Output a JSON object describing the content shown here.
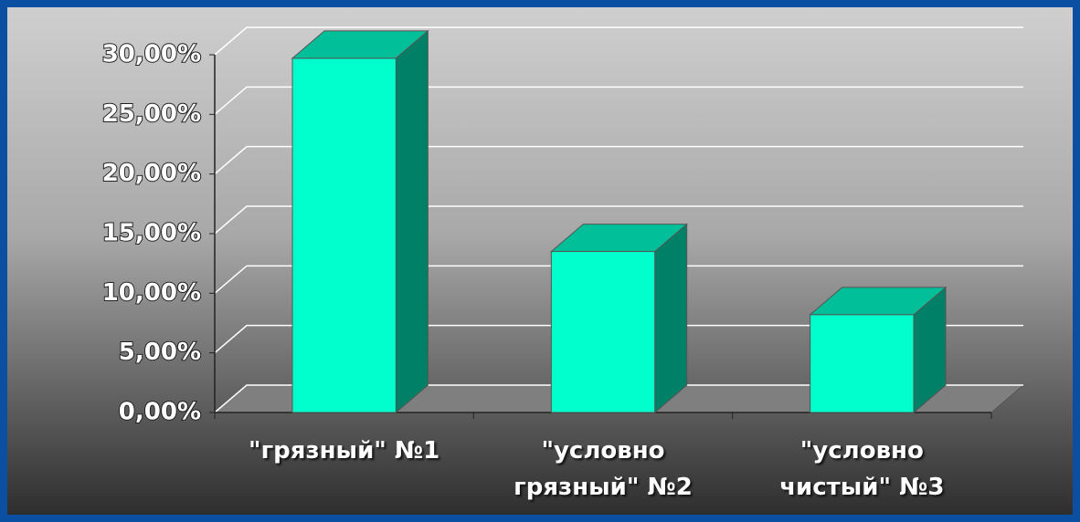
{
  "chart_data": {
    "type": "bar3d",
    "categories": [
      "\"грязный\" №1",
      "\"условно\nгрязный\" №2",
      "\"условно\nчистый\" №3"
    ],
    "values": [
      29.7,
      13.5,
      8.2
    ],
    "color": "#00ffcc",
    "ylim": [
      0,
      30
    ],
    "yticks": [
      {
        "value": 0,
        "label": "0,00%"
      },
      {
        "value": 5,
        "label": "5,00%"
      },
      {
        "value": 10,
        "label": "10,00%"
      },
      {
        "value": 15,
        "label": "15,00%"
      },
      {
        "value": 20,
        "label": "20,00%"
      },
      {
        "value": 25,
        "label": "25,00%"
      },
      {
        "value": 30,
        "label": "30,00%"
      }
    ],
    "grid": true
  }
}
